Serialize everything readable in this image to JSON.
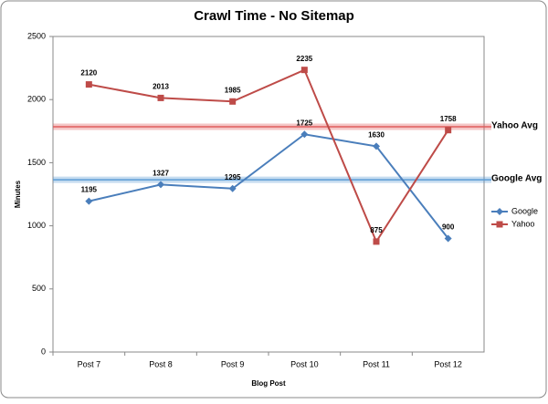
{
  "chart_data": {
    "type": "line",
    "title": "Crawl Time - No Sitemap",
    "x_label": "Blog Post",
    "y_label": "Minutes",
    "categories": [
      "Post 7",
      "Post 8",
      "Post 9",
      "Post 10",
      "Post 11",
      "Post 12"
    ],
    "series": [
      {
        "name": "Google",
        "color": "#4a7ebb",
        "marker": "diamond",
        "values": [
          1195,
          1327,
          1295,
          1725,
          1630,
          900
        ]
      },
      {
        "name": "Yahoo",
        "color": "#be4b48",
        "marker": "square",
        "values": [
          2120,
          2013,
          1985,
          2235,
          875,
          1758
        ]
      }
    ],
    "reference_lines": [
      {
        "label": "Yahoo Avg",
        "value": 1785,
        "color": "#e05c5c"
      },
      {
        "label": "Google Avg",
        "value": 1365,
        "color": "#5b9bd5"
      }
    ],
    "ylim": [
      0,
      2500
    ],
    "yticks": [
      0,
      500,
      1000,
      1500,
      2000,
      2500
    ],
    "grid": false,
    "legend": "right",
    "data_labels": true
  }
}
